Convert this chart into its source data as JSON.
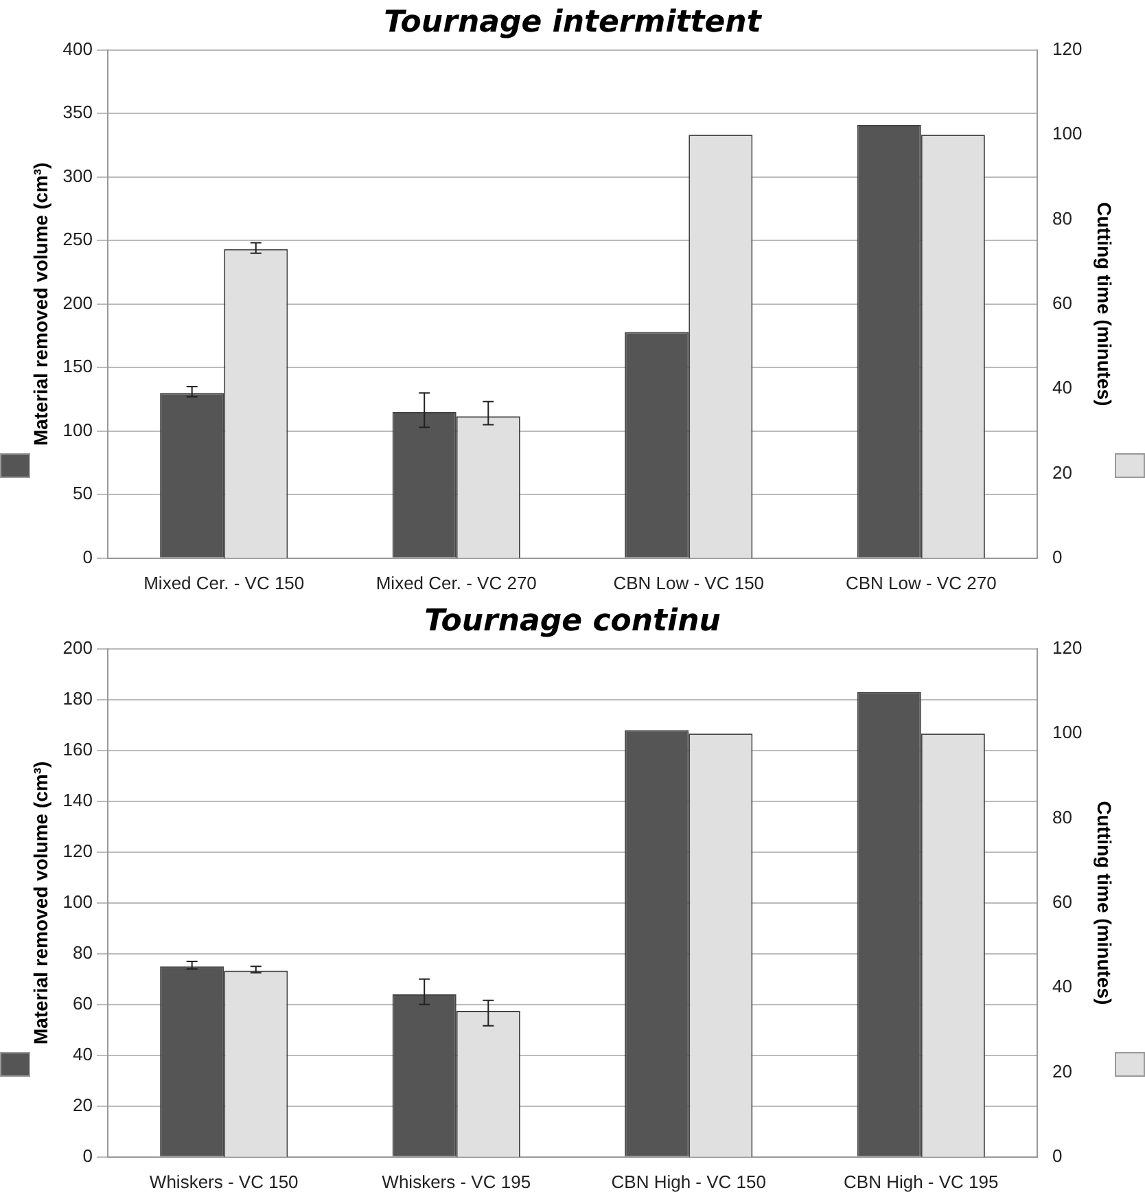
{
  "chart_data": [
    {
      "type": "bar",
      "title": "Tournage intermittent",
      "ylabel": "Material removed volume (cm³)",
      "y2label": "Cutting time (minutes)",
      "categories": [
        "Mixed Cer. - VC 150",
        "Mixed Cer. - VC 270",
        "CBN Low - VC 150",
        "CBN Low - VC 270"
      ],
      "series": [
        {
          "color": "#555555",
          "values": [
            130,
            115,
            178,
            341
          ],
          "errors": [
            [
              127,
              135
            ],
            [
              103,
              130
            ],
            null,
            null
          ]
        },
        {
          "color": "#e0e0e0",
          "axis": "y2",
          "values": [
            73,
            33.5,
            100,
            100
          ],
          "errors": [
            [
              72,
              74.5
            ],
            [
              31.5,
              37
            ],
            null,
            null
          ]
        }
      ],
      "ylim": [
        0,
        400
      ],
      "yticks": [
        0,
        50,
        100,
        150,
        200,
        250,
        300,
        350,
        400
      ],
      "y2lim": [
        0,
        120
      ],
      "y2ticks": [
        0,
        20,
        40,
        60,
        80,
        100,
        120
      ],
      "grid": "y",
      "legend": false
    },
    {
      "type": "bar",
      "title": "Tournage continu",
      "ylabel": "Material removed volume (cm³)",
      "y2label": "Cutting time (minutes)",
      "categories": [
        "Whiskers - VC 150",
        "Whiskers - VC 195",
        "CBN High - VC 150",
        "CBN High - VC 195"
      ],
      "series": [
        {
          "color": "#555555",
          "values": [
            75,
            64,
            168,
            183
          ],
          "errors": [
            [
              74,
              77
            ],
            [
              60,
              70
            ],
            null,
            null
          ]
        },
        {
          "color": "#e0e0e0",
          "axis": "y2",
          "values": [
            44,
            34.5,
            100,
            100
          ],
          "errors": [
            [
              43.5,
              45
            ],
            [
              31,
              37
            ],
            null,
            null
          ]
        }
      ],
      "ylim": [
        0,
        200
      ],
      "yticks": [
        0,
        20,
        40,
        60,
        80,
        100,
        120,
        140,
        160,
        180,
        200
      ],
      "y2lim": [
        0,
        120
      ],
      "y2ticks": [
        0,
        20,
        40,
        60,
        80,
        100,
        120
      ],
      "grid": "y",
      "legend": false
    }
  ]
}
